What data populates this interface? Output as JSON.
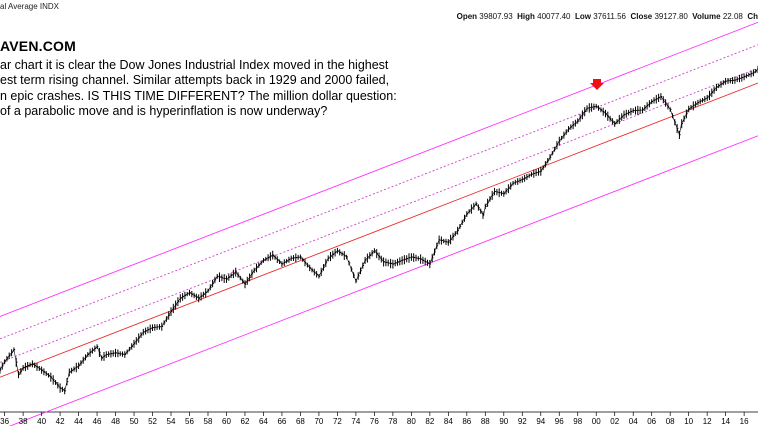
{
  "header": {
    "symbol_line": "al Average INDX",
    "open_label": "Open",
    "open": "39807.93",
    "high_label": "High",
    "high": "40077.40",
    "low_label": "Low",
    "low": "37611.56",
    "close_label": "Close",
    "close": "39127.80",
    "volume_label": "Volume",
    "volume": "22.08",
    "trailing": "Ch"
  },
  "brand": "AVEN.COM",
  "annotation_lines": [
    "ar chart it is clear the Dow Jones Industrial Index moved in the highest",
    "est term rising channel. Similar attempts back in 1929 and 2000 failed,",
    "n epic crashes. IS THIS TIME DIFFERENT? The million dollar question:",
    " of a parabolic move and is hyperinflation is now underway?"
  ],
  "colors": {
    "price": "#000000",
    "channel_outer": "#ff33ff",
    "channel_inner_dotted": "#cc44cc",
    "midline": "#e83030",
    "arrow": "#ee1111"
  },
  "chart_data": {
    "type": "line",
    "scale": "log",
    "xlim": [
      1935.5,
      2017.5
    ],
    "ylim": [
      75,
      48000
    ],
    "x_ticks": [
      "36",
      "38",
      "40",
      "42",
      "44",
      "46",
      "48",
      "50",
      "52",
      "54",
      "56",
      "58",
      "60",
      "62",
      "64",
      "66",
      "68",
      "70",
      "72",
      "74",
      "76",
      "78",
      "80",
      "82",
      "84",
      "86",
      "88",
      "90",
      "92",
      "94",
      "96",
      "98",
      "00",
      "02",
      "04",
      "06",
      "08",
      "10",
      "12",
      "14",
      "16"
    ],
    "x_tick_years": [
      1936,
      1938,
      1940,
      1942,
      1944,
      1946,
      1948,
      1950,
      1952,
      1954,
      1956,
      1958,
      1960,
      1962,
      1964,
      1966,
      1968,
      1970,
      1972,
      1974,
      1976,
      1978,
      1980,
      1982,
      1984,
      1986,
      1988,
      1990,
      1992,
      1994,
      1996,
      1998,
      2000,
      2002,
      2004,
      2006,
      2008,
      2010,
      2012,
      2014,
      2016
    ],
    "series": [
      {
        "x": [
          1935.5,
          1936,
          1937,
          1937.5,
          1938,
          1939,
          1940,
          1941,
          1942,
          1942.5,
          1943,
          1944,
          1945,
          1946,
          1946.5,
          1947,
          1948,
          1949,
          1950,
          1951,
          1952,
          1953,
          1954,
          1955,
          1956,
          1957,
          1958,
          1959,
          1960,
          1961,
          1962,
          1963,
          1964,
          1965,
          1966,
          1967,
          1968,
          1969,
          1970,
          1971,
          1972,
          1973,
          1974,
          1975,
          1976,
          1977,
          1978,
          1979,
          1980,
          1981,
          1982,
          1983,
          1984,
          1985,
          1986,
          1987,
          1987.8,
          1988,
          1989,
          1990,
          1991,
          1992,
          1993,
          1994,
          1995,
          1996,
          1997,
          1998,
          1999,
          2000,
          2001,
          2002,
          2003,
          2004,
          2005,
          2006,
          2007,
          2008,
          2009,
          2009.2,
          2010,
          2011,
          2012,
          2013,
          2014,
          2015,
          2016,
          2017,
          2017.5
        ],
        "values": [
          135,
          155,
          190,
          125,
          140,
          150,
          135,
          120,
          100,
          95,
          130,
          145,
          175,
          200,
          165,
          175,
          180,
          175,
          210,
          255,
          275,
          280,
          360,
          450,
          495,
          450,
          510,
          650,
          620,
          700,
          570,
          720,
          850,
          930,
          800,
          880,
          900,
          750,
          650,
          880,
          1000,
          900,
          600,
          850,
          1000,
          830,
          800,
          850,
          900,
          870,
          800,
          1200,
          1150,
          1400,
          1850,
          2200,
          1800,
          2100,
          2700,
          2600,
          3100,
          3300,
          3600,
          3800,
          4800,
          6300,
          7700,
          8800,
          10900,
          11300,
          10000,
          8400,
          9800,
          10500,
          10600,
          12200,
          13300,
          10700,
          7000,
          8300,
          10800,
          12000,
          13000,
          15500,
          17200,
          17500,
          18500,
          19800,
          21000
        ]
      }
    ],
    "xlabel": "",
    "ylabel": "",
    "title": ""
  }
}
